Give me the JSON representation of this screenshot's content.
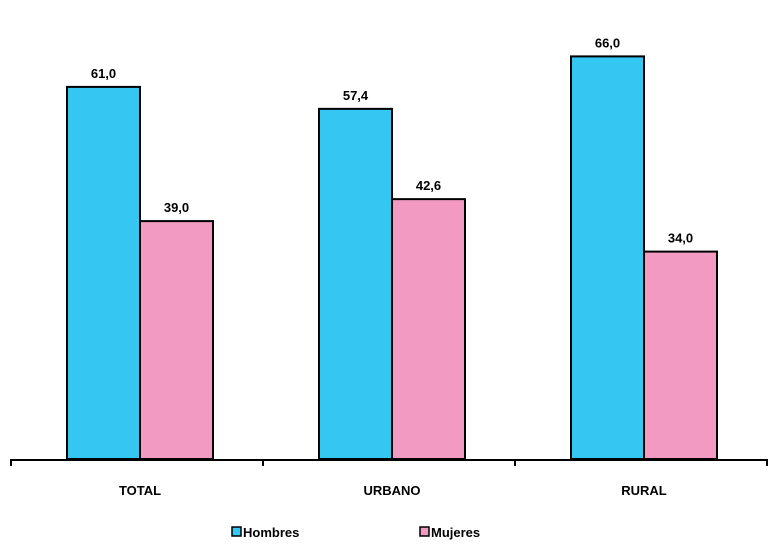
{
  "chart_data": {
    "type": "bar",
    "categories": [
      "TOTAL",
      "URBANO",
      "RURAL"
    ],
    "series": [
      {
        "name": "Hombres",
        "values": [
          61.0,
          57.4,
          66.0
        ],
        "color": "#33c7f2"
      },
      {
        "name": "Mujeres",
        "values": [
          39.0,
          42.6,
          34.0
        ],
        "color": "#f29ac2"
      }
    ],
    "value_labels": [
      [
        "61,0",
        "57,4",
        "66,0"
      ],
      [
        "39,0",
        "42,6",
        "34,0"
      ]
    ],
    "title": "",
    "xlabel": "",
    "ylabel": "",
    "ylim": [
      0,
      70
    ],
    "grid": false,
    "legend_position": "bottom"
  }
}
